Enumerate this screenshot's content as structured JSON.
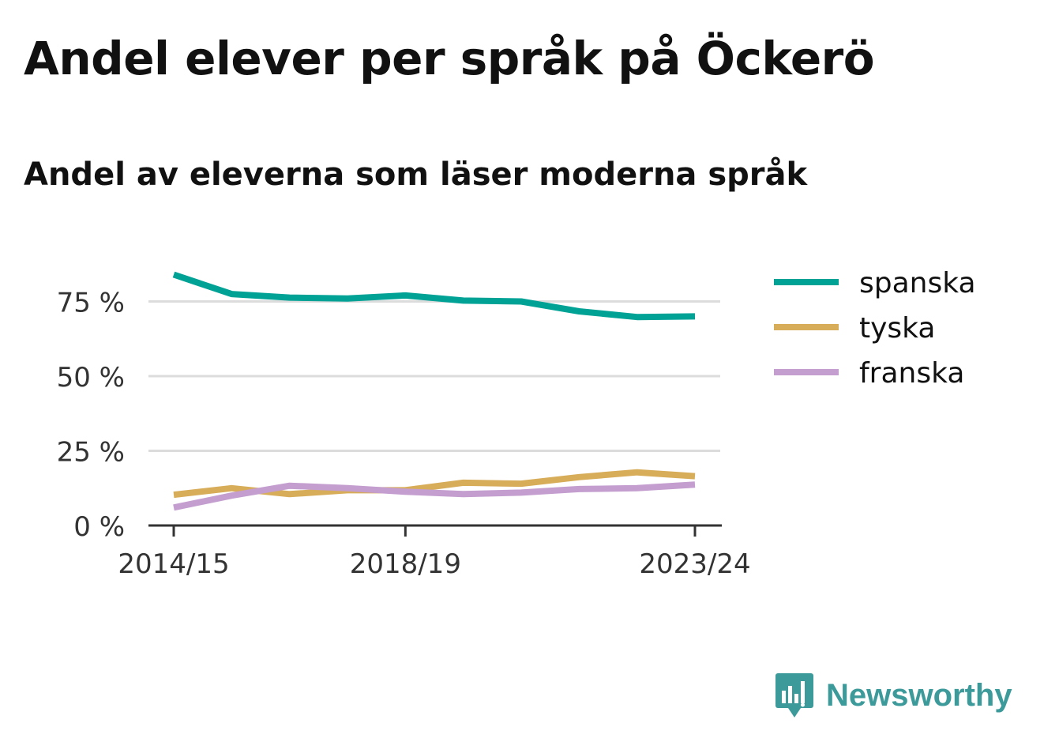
{
  "header": {
    "title": "Andel elever per språk på Öckerö",
    "subtitle": "Andel av eleverna som läser moderna språk"
  },
  "brand": {
    "name": "Newsworthy",
    "icon": "newsworthy-logo-icon",
    "color": "#3d9a9a"
  },
  "chart_data": {
    "type": "line",
    "categories": [
      "2014/15",
      "2015/16",
      "2016/17",
      "2017/18",
      "2018/19",
      "2019/20",
      "2020/21",
      "2021/22",
      "2022/23",
      "2023/24"
    ],
    "x_tick_labels": [
      "2014/15",
      "2018/19",
      "2023/24"
    ],
    "y_ticks": [
      0,
      25,
      50,
      75
    ],
    "y_tick_labels": [
      "0 %",
      "25 %",
      "50 %",
      "75 %"
    ],
    "ylim": [
      0,
      85
    ],
    "grid": true,
    "legend_position": "right",
    "series": [
      {
        "name": "spanska",
        "color": "#00a296",
        "values": [
          84,
          77.5,
          76.3,
          76,
          77,
          75.3,
          75,
          71.7,
          69.8,
          70
        ]
      },
      {
        "name": "tyska",
        "color": "#d8ad5a",
        "values": [
          10.3,
          12.5,
          10.5,
          11.8,
          11.8,
          14.3,
          14,
          16.2,
          17.8,
          16.5
        ]
      },
      {
        "name": "franska",
        "color": "#c39ecf",
        "values": [
          6,
          10,
          13.3,
          12.5,
          11.3,
          10.5,
          11,
          12.2,
          12.5,
          13.7
        ]
      }
    ]
  }
}
